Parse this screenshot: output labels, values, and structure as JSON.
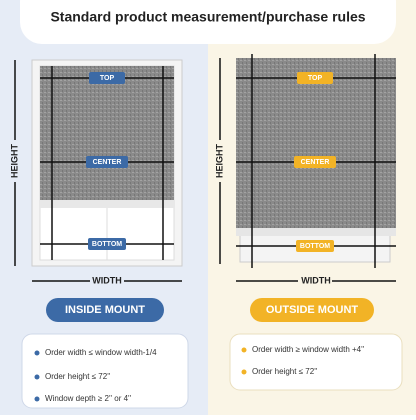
{
  "header": {
    "title": "Standard product measurement/purchase rules"
  },
  "panels": [
    {
      "labels": {
        "top": "TOP",
        "center": "CENTER",
        "bottom": "BOTTOM",
        "height": "HEIGHT",
        "width": "WIDTH"
      },
      "mount": "INSIDE MOUNT",
      "rules": [
        "Order width ≤ window width-1/4",
        "Order height ≤ 72''",
        "Window depth ≥ 2'' or 4''"
      ]
    },
    {
      "labels": {
        "top": "TOP",
        "center": "CENTER",
        "bottom": "BOTTOM",
        "height": "HEIGHT",
        "width": "WIDTH"
      },
      "mount": "OUTSIDE MOUNT",
      "rules": [
        "Order width ≥ window width +4''",
        "Order height ≤ 72''"
      ]
    }
  ]
}
